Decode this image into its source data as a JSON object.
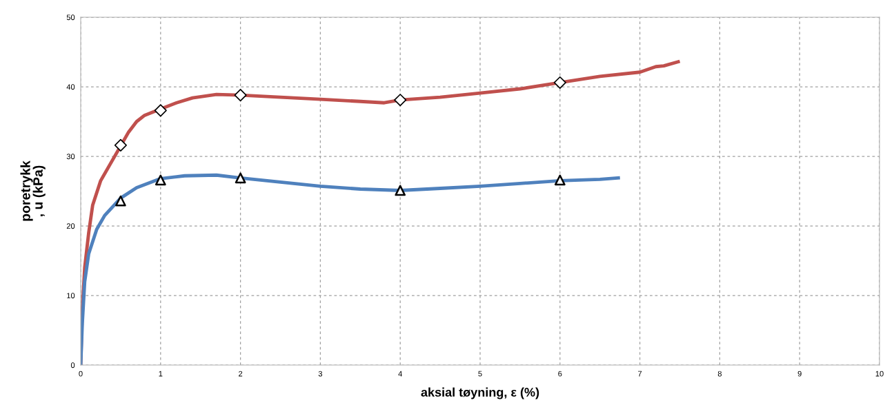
{
  "chart_data": {
    "type": "line",
    "xlabel": "aksial tøyning, ε (%)",
    "ylabel": "poretrykk\n, u (kPa)",
    "xlim": [
      0,
      10
    ],
    "xticks": [
      0,
      1,
      2,
      3,
      4,
      5,
      6,
      7,
      8,
      9,
      10
    ],
    "ylim": [
      0,
      50
    ],
    "yticks": [
      0,
      10,
      20,
      30,
      40,
      50
    ],
    "grid": true,
    "line_style": "solid",
    "series": [
      {
        "color": "#c0504d",
        "x": [
          0,
          0.02,
          0.05,
          0.1,
          0.15,
          0.25,
          0.35,
          0.5,
          0.6,
          0.7,
          0.8,
          1.0,
          1.2,
          1.4,
          1.7,
          2.0,
          2.5,
          3.0,
          3.5,
          3.8,
          4.0,
          4.5,
          5.0,
          5.5,
          6.0,
          6.5,
          7.0,
          7.2,
          7.3,
          7.48
        ],
        "values": [
          0,
          8,
          14,
          19,
          23,
          26.5,
          28.5,
          31.5,
          33.5,
          35,
          35.9,
          36.8,
          37.7,
          38.4,
          38.9,
          38.8,
          38.5,
          38.2,
          37.9,
          37.7,
          38.1,
          38.5,
          39.1,
          39.7,
          40.6,
          41.5,
          42.1,
          42.9,
          43.0,
          43.6
        ]
      },
      {
        "color": "#4f81bd",
        "x": [
          0,
          0.02,
          0.05,
          0.1,
          0.2,
          0.3,
          0.5,
          0.7,
          1.0,
          1.3,
          1.7,
          2.0,
          2.5,
          3.0,
          3.5,
          4.0,
          4.5,
          5.0,
          5.5,
          6.0,
          6.5,
          6.73
        ],
        "values": [
          0,
          6,
          12,
          16,
          19.5,
          21.5,
          24,
          25.5,
          26.8,
          27.2,
          27.3,
          26.9,
          26.3,
          25.7,
          25.3,
          25.1,
          25.4,
          25.7,
          26.1,
          26.5,
          26.7,
          26.9
        ]
      },
      {
        "type": "scatter",
        "marker": "diamond",
        "color": "#000000",
        "x": [
          0.5,
          1,
          2,
          4,
          6
        ],
        "values": [
          31.6,
          36.6,
          38.8,
          38.1,
          40.6
        ]
      },
      {
        "type": "scatter",
        "marker": "triangle",
        "color": "#000000",
        "x": [
          0.5,
          1,
          2,
          4,
          6
        ],
        "values": [
          23.6,
          26.6,
          26.9,
          25.1,
          26.6
        ]
      }
    ]
  }
}
